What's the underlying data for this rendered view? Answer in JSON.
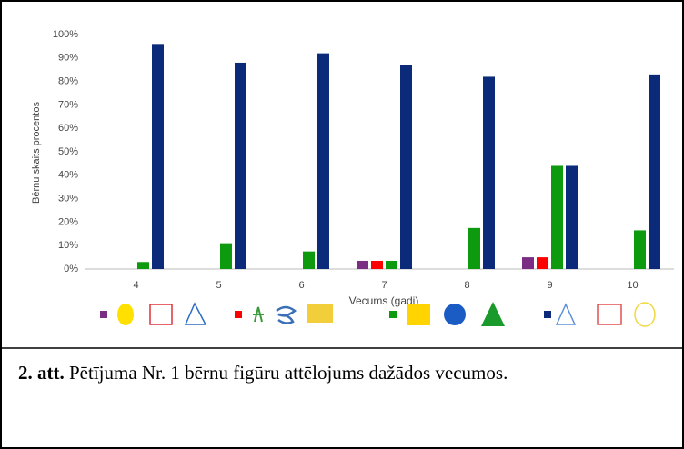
{
  "chart_data": {
    "type": "bar",
    "y_label": "Bērnu skaits procentos",
    "x_label": "Vecums (gadi)",
    "categories": [
      "4",
      "5",
      "6",
      "7",
      "8",
      "9",
      "10"
    ],
    "series": [
      {
        "color": "#7b2c83",
        "values": [
          0,
          0,
          0,
          3.5,
          0,
          5,
          0
        ]
      },
      {
        "color": "#ff0000",
        "values": [
          0,
          0,
          0,
          3.5,
          0,
          5,
          0
        ]
      },
      {
        "color": "#0e9a0e",
        "values": [
          3,
          11,
          7.5,
          3.5,
          17.5,
          44,
          16.5
        ]
      },
      {
        "color": "#0c2a7a",
        "values": [
          96,
          88,
          92,
          87,
          82,
          44,
          83
        ]
      }
    ],
    "ylim": [
      0,
      100
    ],
    "yticks": [
      {
        "value": 0,
        "label": "0%"
      },
      {
        "value": 10,
        "label": "10%"
      },
      {
        "value": 20,
        "label": "20%"
      },
      {
        "value": 30,
        "label": "30%"
      },
      {
        "value": 40,
        "label": "40%"
      },
      {
        "value": 50,
        "label": "50%"
      },
      {
        "value": 60,
        "label": "60%"
      },
      {
        "value": 70,
        "label": "70%"
      },
      {
        "value": 80,
        "label": "80%"
      },
      {
        "value": 90,
        "label": "90%"
      },
      {
        "value": 100,
        "label": "100%"
      }
    ],
    "grid": false
  },
  "caption": {
    "label": "2. att.",
    "text": "Pētījuma Nr. 1 bērnu figūru attēlojums dažādos vecumos."
  }
}
